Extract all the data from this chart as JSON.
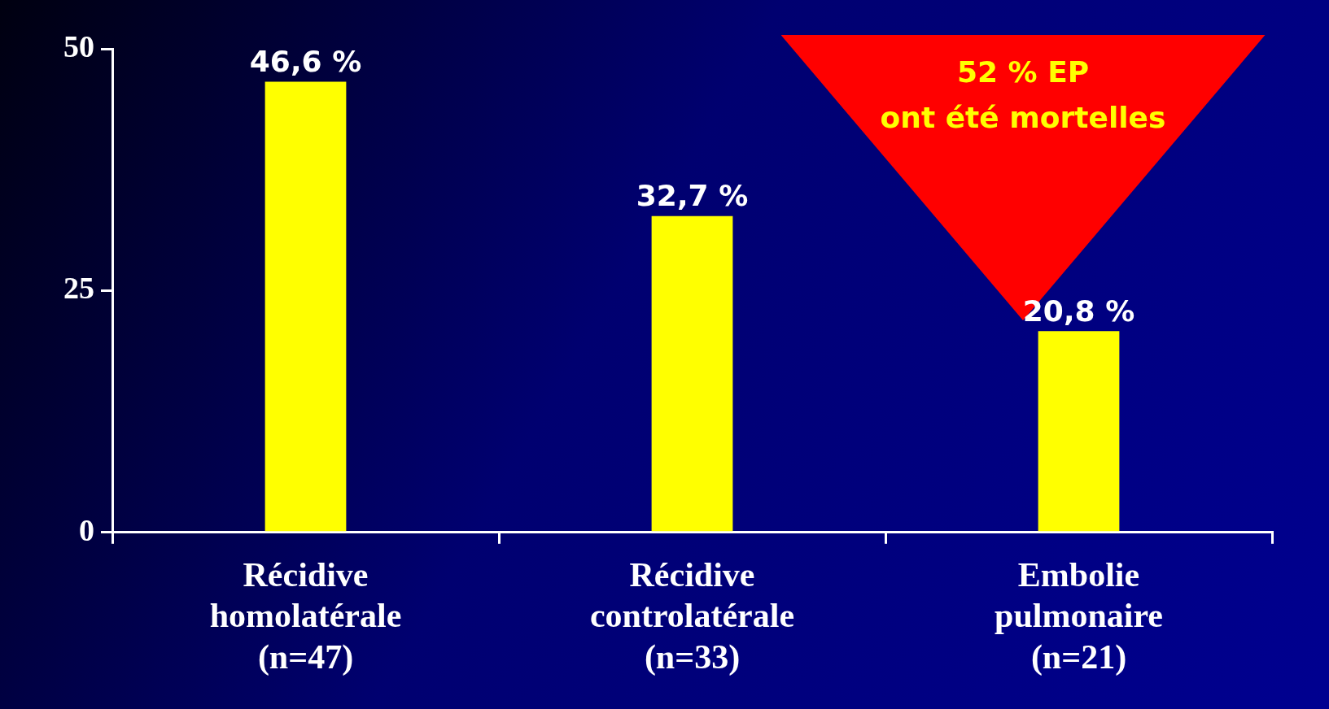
{
  "chart_data": {
    "type": "bar",
    "categories": [
      "Récidive\nhomolatérale\n(n=47)",
      "Récidive\ncontrolatérale\n(n=33)",
      "Embolie\npulmonaire\n(n=21)"
    ],
    "values": [
      46.6,
      32.7,
      20.8
    ],
    "color": "#ffff00",
    "value_labels": [
      "46,6 %",
      "32,7 %",
      "20,8 %"
    ],
    "ylim": [
      0,
      50
    ],
    "yticks": [
      0,
      25,
      50
    ],
    "annotations": [
      "52 % EP\nont été mortelles"
    ]
  }
}
